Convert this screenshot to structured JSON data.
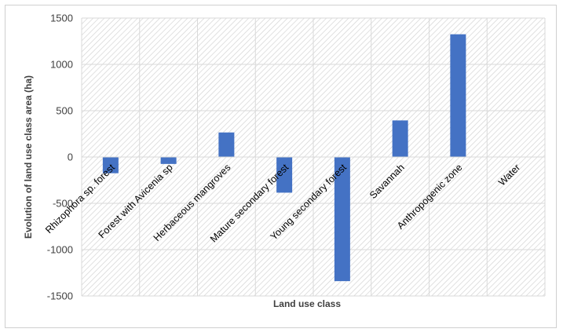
{
  "chart_data": {
    "type": "bar",
    "title": "",
    "xlabel": "Land use class",
    "ylabel": "Evolution of land use class area (ha)",
    "ylim": [
      -1500,
      1500
    ],
    "yticks": [
      1500,
      1000,
      500,
      0,
      -500,
      -1000,
      -1500
    ],
    "ytick_labels": [
      "1500",
      "1000",
      "500",
      "0",
      "-500",
      "-1000",
      "-1500"
    ],
    "grid": true,
    "legend": "none",
    "categories": [
      "Rhizophora sp. forest",
      "Forest with Avicenia sp",
      "Herbaceous mangroves",
      "Mature secondary forest",
      "Young secondary forest",
      "Savannah",
      "Anthropogenic zone",
      "Water"
    ],
    "values": [
      -175,
      -75,
      265,
      -385,
      -1340,
      395,
      1325,
      0
    ],
    "bar_color": "#4472c4",
    "background_pattern": "diagonal hatch"
  }
}
